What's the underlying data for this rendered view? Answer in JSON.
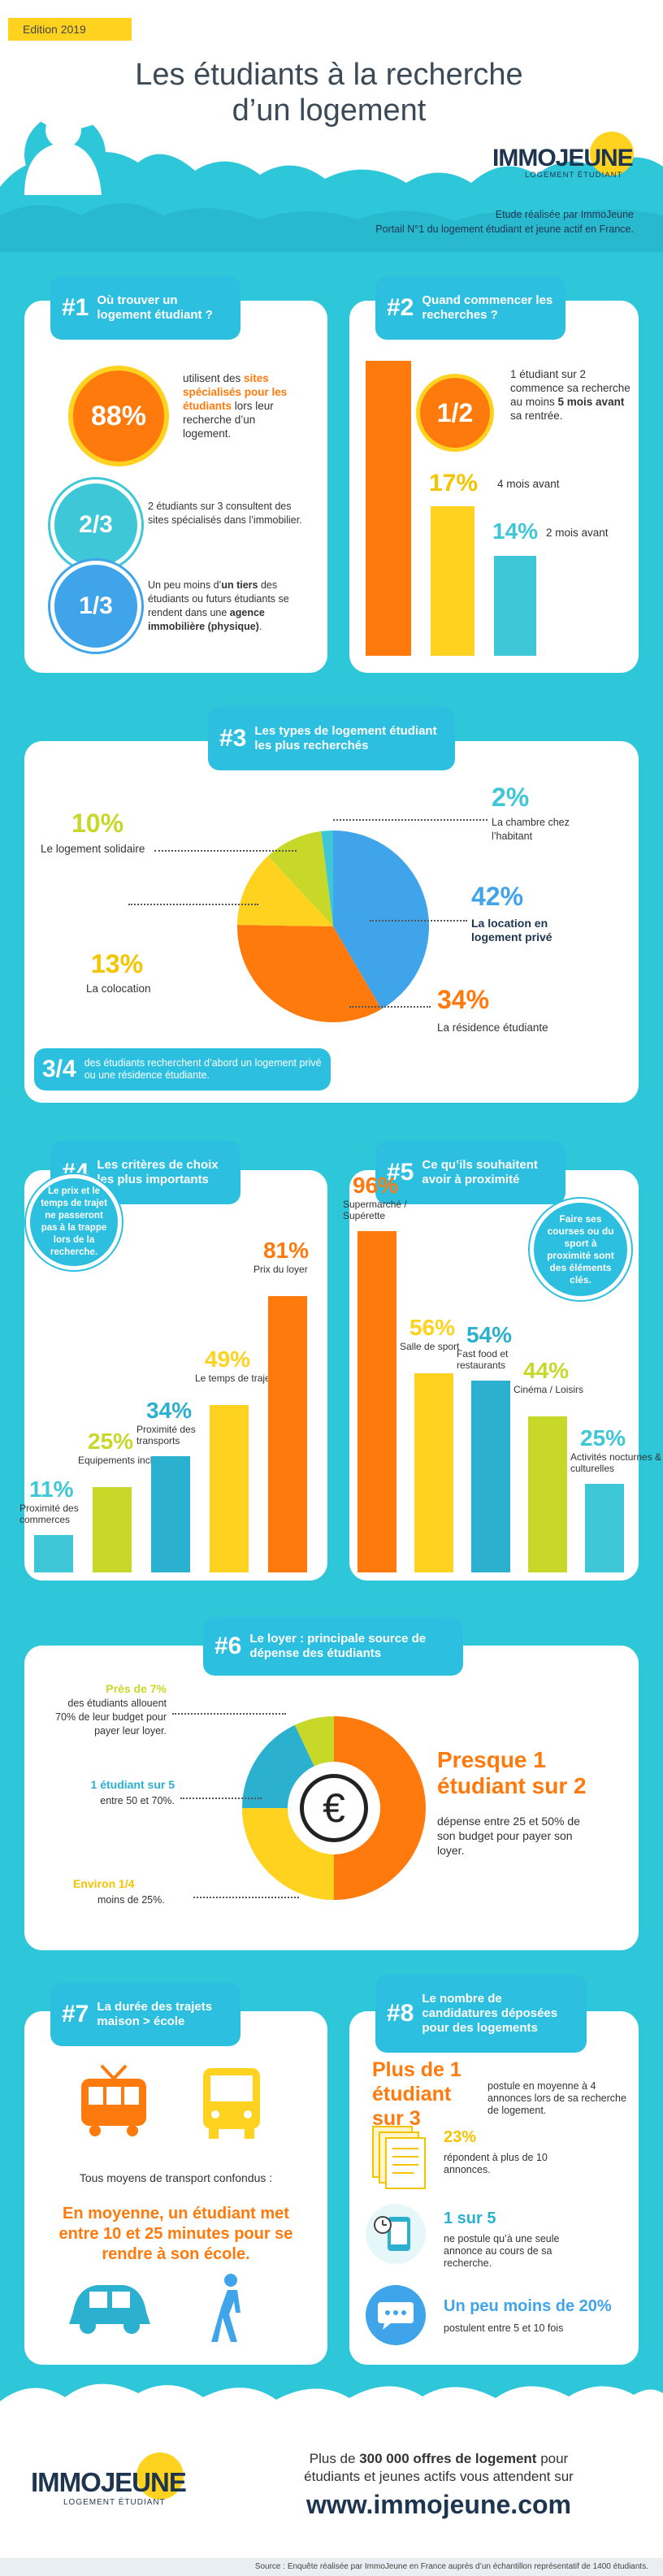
{
  "header": {
    "edition": "Edition 2019",
    "title_line1": "Les étudiants à la recherche",
    "title_line2": "d’un logement",
    "logo_name": "IMMOJEUNE",
    "logo_sub": "LOGEMENT ÉTUDIANT",
    "study_line1": "Etude réalisée par ImmoJeune",
    "study_line2": "Portail N°1 du logement étudiant et jeune actif en France."
  },
  "s1": {
    "num": "#1",
    "title": "Où trouver un logement étudiant ?",
    "p1": "88%",
    "p1_t1": "utilisent des ",
    "p1_bold": "sites spécialisés pour les étudiants",
    "p1_t2": " lors leur recherche d’un logement.",
    "p2": "2/3",
    "p2_t": "2 étudiants sur 3 consultent des sites spécialisés dans l’immobilier.",
    "p3": "1/3",
    "p3_t1": "Un peu moins d’",
    "p3_bold1": "un tiers",
    "p3_t2": " des étudiants ou futurs étudiants se rendent dans une ",
    "p3_bold2": "agence immobilière (physique)",
    "p3_t3": "."
  },
  "s2": {
    "num": "#2",
    "title": "Quand commencer les recherches ?",
    "p1": "1/2",
    "p1_t1": "1 étudiant sur 2 commence sa recherche au moins ",
    "p1_bold": "5 mois avant",
    "p1_t2": " sa rentrée.",
    "p2": "17%",
    "p2_t": "4 mois avant",
    "p3": "14%",
    "p3_t": "2 mois avant",
    "colors": [
      "#ff7a0d",
      "#ffd21f",
      "#3ec7d6"
    ],
    "values": [
      50,
      17,
      14
    ]
  },
  "s3": {
    "num": "#3",
    "title": "Les types de logement étudiant les plus recherchés",
    "slices": [
      {
        "pct": "42%",
        "value": 42,
        "label": "La location en logement privé",
        "color": "#3fa4ea"
      },
      {
        "pct": "34%",
        "value": 34,
        "label": "La résidence étudiante",
        "color": "#ff7a0d"
      },
      {
        "pct": "13%",
        "value": 13,
        "label": "La colocation",
        "color": "#ffd21f"
      },
      {
        "pct": "10%",
        "value": 10,
        "label": "Le logement solidaire",
        "color": "#c8d829"
      },
      {
        "pct": "2%",
        "value": 2,
        "label": "La chambre chez l’habitant",
        "color": "#3ec7d6"
      }
    ],
    "foot_frac": "3/4",
    "foot_t": "des étudiants recherchent d’abord un logement privé ou une résidence étudiante."
  },
  "s4": {
    "num": "#4",
    "title": "Les critères de choix les plus importants",
    "bubble": "Le prix et le temps de trajet ne passeront pas à la trappe lors de la recherche.",
    "bars": [
      {
        "pct": "11%",
        "value": 11,
        "label": "Proximité des commerces",
        "color": "#3ec7d6"
      },
      {
        "pct": "25%",
        "value": 25,
        "label": "Equipements inclus",
        "color": "#c8d829"
      },
      {
        "pct": "34%",
        "value": 34,
        "label": "Proximité des transports",
        "color": "#2bb0cf"
      },
      {
        "pct": "49%",
        "value": 49,
        "label": "Le temps de trajet",
        "color": "#ffd21f"
      },
      {
        "pct": "81%",
        "value": 81,
        "label": "Prix du loyer",
        "color": "#ff7a0d"
      }
    ]
  },
  "s5": {
    "num": "#5",
    "title": "Ce qu’ils souhaitent avoir à proximité",
    "bubble": "Faire ses courses ou du sport à proximité sont des éléments clés.",
    "bars": [
      {
        "pct": "96%",
        "value": 96,
        "label": "Supermarché / Supérette",
        "color": "#ff7a0d"
      },
      {
        "pct": "56%",
        "value": 56,
        "label": "Salle de sport",
        "color": "#ffd21f"
      },
      {
        "pct": "54%",
        "value": 54,
        "label": "Fast food et restaurants",
        "color": "#2bb0cf"
      },
      {
        "pct": "44%",
        "value": 44,
        "label": "Cinéma / Loisirs",
        "color": "#c8d829"
      },
      {
        "pct": "25%",
        "value": 25,
        "label": "Activités nocturnes & culturelles",
        "color": "#3ec7d6"
      }
    ]
  },
  "s6": {
    "num": "#6",
    "title": "Le loyer : principale source de dépense des étudiants",
    "slices": [
      {
        "value": 50,
        "color": "#ff7a0d"
      },
      {
        "value": 25,
        "color": "#ffd21f"
      },
      {
        "value": 18,
        "color": "#2bb0cf"
      },
      {
        "value": 7,
        "color": "#c8d829"
      }
    ],
    "a_head": "Près de 7%",
    "a_t": "des étudiants allouent 70% de leur budget pour payer leur loyer.",
    "b_head": "1 étudiant sur 5",
    "b_t": "entre 50 et 70%.",
    "c_head": "Environ 1/4",
    "c_t": "moins de 25%.",
    "d_head": "Presque 1 étudiant sur 2",
    "d_t": "dépense entre 25 et 50% de son budget pour payer son loyer.",
    "euro": "€"
  },
  "s7": {
    "num": "#7",
    "title": "La durée des trajets maison > école",
    "t1": "Tous moyens de transport confondus :",
    "t2": "En moyenne, un étudiant met entre 10 et 25 minutes pour se rendre à son école."
  },
  "s8": {
    "num": "#8",
    "title": "Le nombre de candidatures déposées pour des logements",
    "head": "Plus de 1 étudiant sur 3",
    "head_t": "postule en moyenne à 4 annonces lors de sa recherche de logement.",
    "r1_h": "23%",
    "r1_t": "répondent à plus de 10 annonces.",
    "r2_h": "1 sur 5",
    "r2_t": "ne postule qu’à une seule annonce au cours de sa recherche.",
    "r3_h": "Un peu moins de 20%",
    "r3_t": "postulent entre 5 et 10 fois"
  },
  "footer": {
    "l1_a": "Plus de ",
    "l1_b": "300 000 offres de logement",
    "l1_c": " pour",
    "l2": "étudiants et jeunes actifs vous attendent sur",
    "url": "www.immojeune.com",
    "source": "Source : Enquête réalisée par ImmoJeune en France auprès d’un échantillon représentatif de 1400 étudiants."
  }
}
